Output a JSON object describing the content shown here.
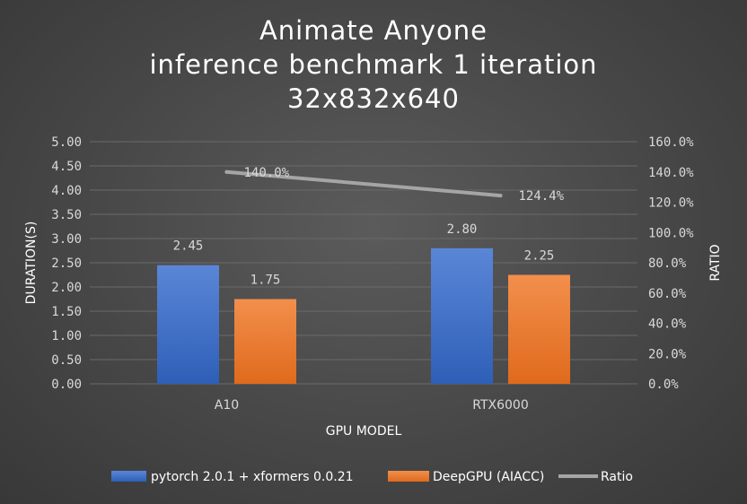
{
  "chart_data": {
    "type": "bar",
    "title": [
      "Animate Anyone",
      "inference benchmark 1 iteration",
      "32x832x640"
    ],
    "xlabel": "GPU MODEL",
    "ylabel": "DURATION(S)",
    "y2label": "RATIO",
    "categories": [
      "A10",
      "RTX6000"
    ],
    "ylim": [
      0,
      5
    ],
    "y_ticks": [
      "0.00",
      "0.50",
      "1.00",
      "1.50",
      "2.00",
      "2.50",
      "3.00",
      "3.50",
      "4.00",
      "4.50",
      "5.00"
    ],
    "y2lim": [
      0,
      160
    ],
    "y2_ticks": [
      "0.0%",
      "20.0%",
      "40.0%",
      "60.0%",
      "80.0%",
      "100.0%",
      "120.0%",
      "140.0%",
      "160.0%"
    ],
    "grid": true,
    "legend_position": "bottom",
    "series": [
      {
        "name": "pytorch 2.0.1 + xformers 0.0.21",
        "type": "bar",
        "axis": "left",
        "color": "#4472c4",
        "values": [
          2.45,
          2.8
        ],
        "labels": [
          "2.45",
          "2.80"
        ]
      },
      {
        "name": "DeepGPU (AIACC)",
        "type": "bar",
        "axis": "left",
        "color": "#ed7d31",
        "values": [
          1.75,
          2.25
        ],
        "labels": [
          "1.75",
          "2.25"
        ]
      },
      {
        "name": "Ratio",
        "type": "line",
        "axis": "right",
        "color": "#a5a5a5",
        "values": [
          140.0,
          124.4
        ],
        "labels": [
          "140.0%",
          "124.4%"
        ]
      }
    ]
  }
}
